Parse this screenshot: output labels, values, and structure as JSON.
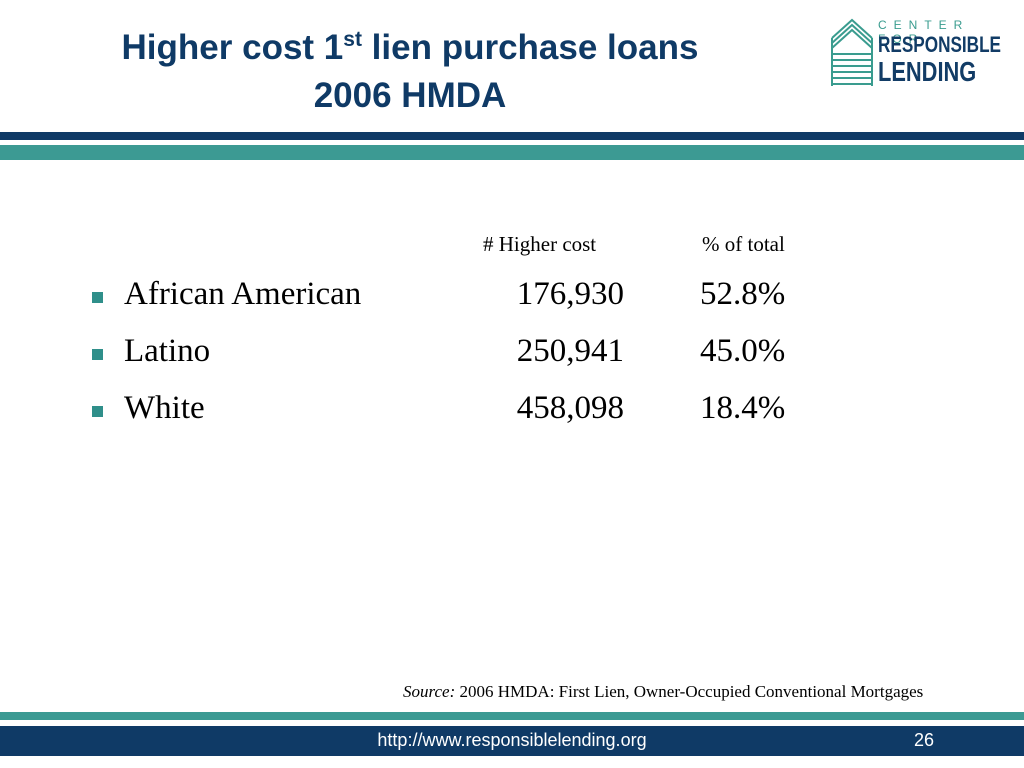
{
  "slide": {
    "title_line1_pre": "Higher cost 1",
    "title_sup": "st",
    "title_line1_post": " lien purchase loans",
    "title_line2": "2006 HMDA"
  },
  "logo": {
    "top": "CENTER FOR",
    "line1": "RESPONSIBLE",
    "line2": "LENDING",
    "colors": {
      "navy": "#123c66",
      "teal": "#3a9c8f"
    }
  },
  "table": {
    "headers": [
      "# Higher cost",
      "% of total"
    ],
    "rows": [
      {
        "label": "African American",
        "count": "176,930",
        "pct": "52.8%"
      },
      {
        "label": "Latino",
        "count": "250,941",
        "pct": "45.0%"
      },
      {
        "label": "White",
        "count": "458,098",
        "pct": "18.4%"
      }
    ]
  },
  "source": {
    "prefix": "Source:",
    "text": " 2006 HMDA: First Lien, Owner-Occupied Conventional Mortgages"
  },
  "footer": {
    "url": "http://www.responsiblelending.org",
    "page": "26"
  },
  "colors": {
    "navy": "#0f3a66",
    "teal": "#3c9a93",
    "bullet": "#2f8f8a"
  }
}
